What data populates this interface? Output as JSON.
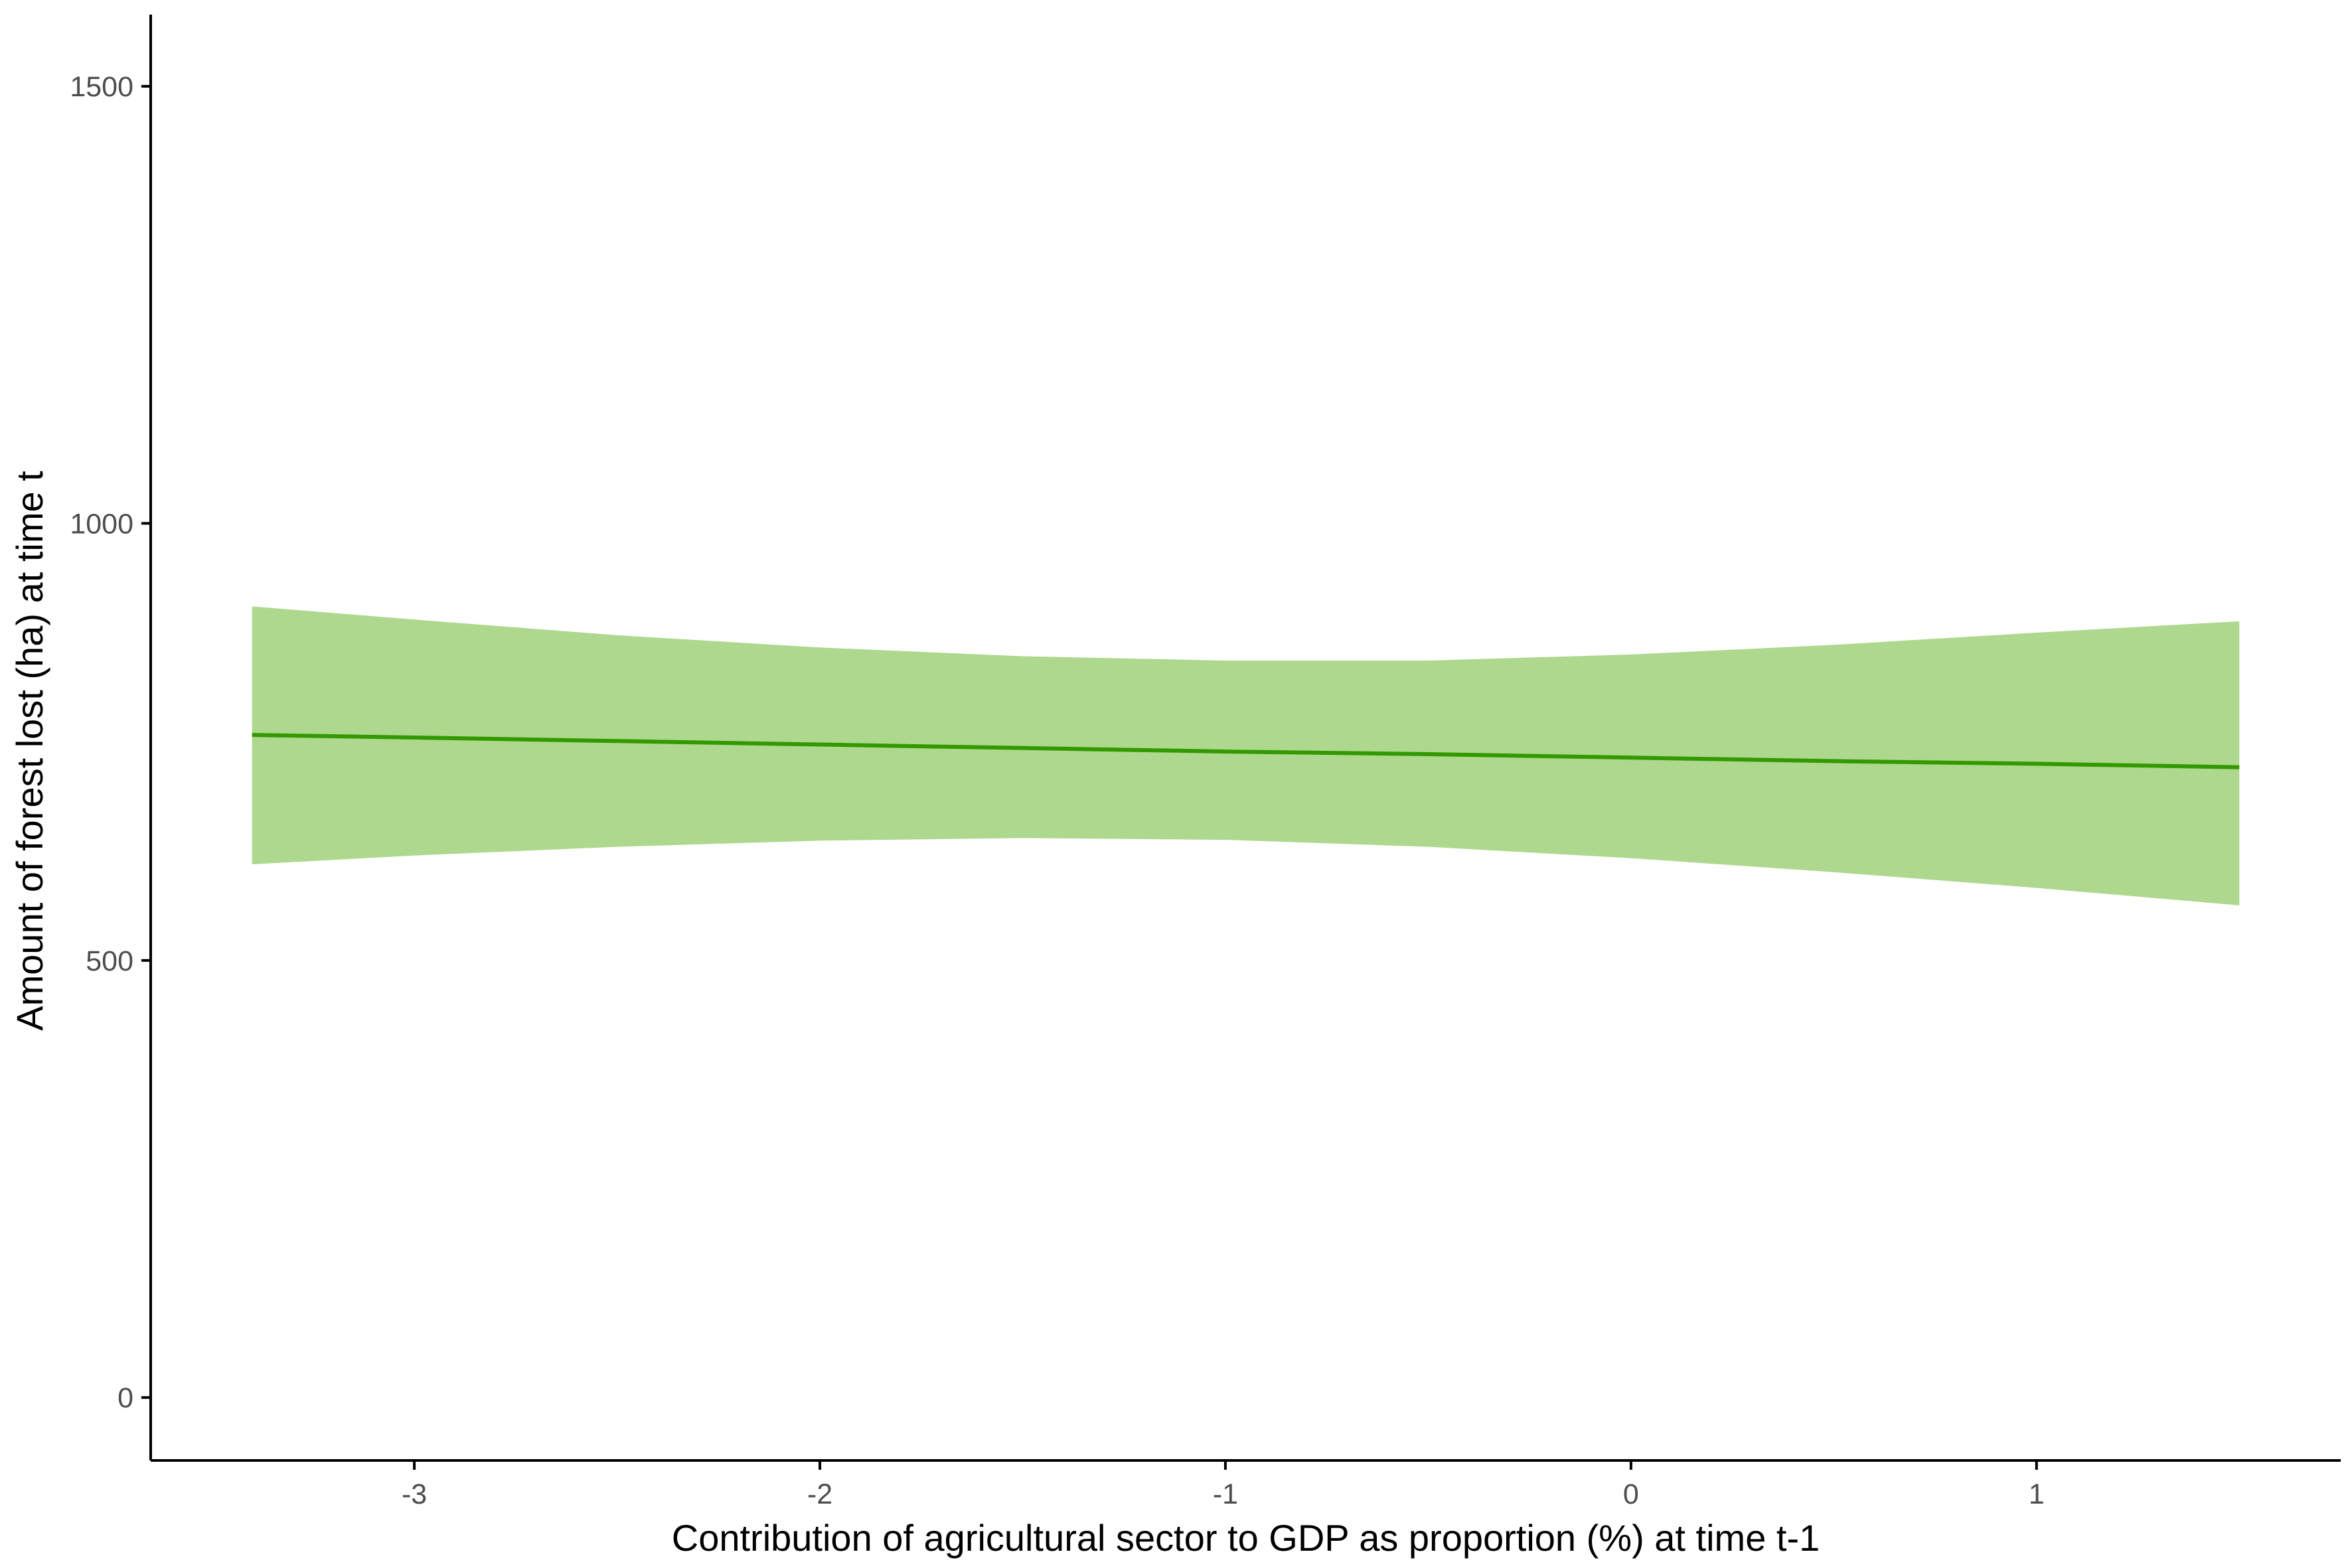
{
  "chart_data": {
    "type": "line",
    "title": "",
    "xlabel": "Contribution of agricultural sector to GDP as proportion (%) at time t-1",
    "ylabel": "Amount of forest lost (ha) at time t",
    "xlim": [
      -3.65,
      1.75
    ],
    "ylim": [
      -72,
      1582
    ],
    "x_ticks": [
      -3,
      -2,
      -1,
      0,
      1
    ],
    "x_tick_labels": [
      "-3",
      "-2",
      "-1",
      "0",
      "1"
    ],
    "y_ticks": [
      0,
      500,
      1000,
      1500
    ],
    "y_tick_labels": [
      "0",
      "500",
      "1000",
      "1500"
    ],
    "grid": false,
    "legend": "none",
    "series": [
      {
        "x": [
          -3.4,
          -3.0,
          -2.5,
          -2.0,
          -1.5,
          -1.0,
          -0.5,
          0.0,
          0.5,
          1.0,
          1.5
        ],
        "y": [
          758,
          755,
          751,
          747,
          743,
          739,
          736,
          732,
          728,
          725,
          721
        ],
        "lower": [
          610,
          620,
          630,
          637,
          640,
          638,
          630,
          617,
          601,
          583,
          563
        ],
        "upper": [
          905,
          890,
          872,
          858,
          848,
          843,
          843,
          850,
          861,
          875,
          888
        ]
      }
    ],
    "colors": {
      "line": "#339900",
      "band": "#add88e",
      "axis": "#000000"
    }
  }
}
